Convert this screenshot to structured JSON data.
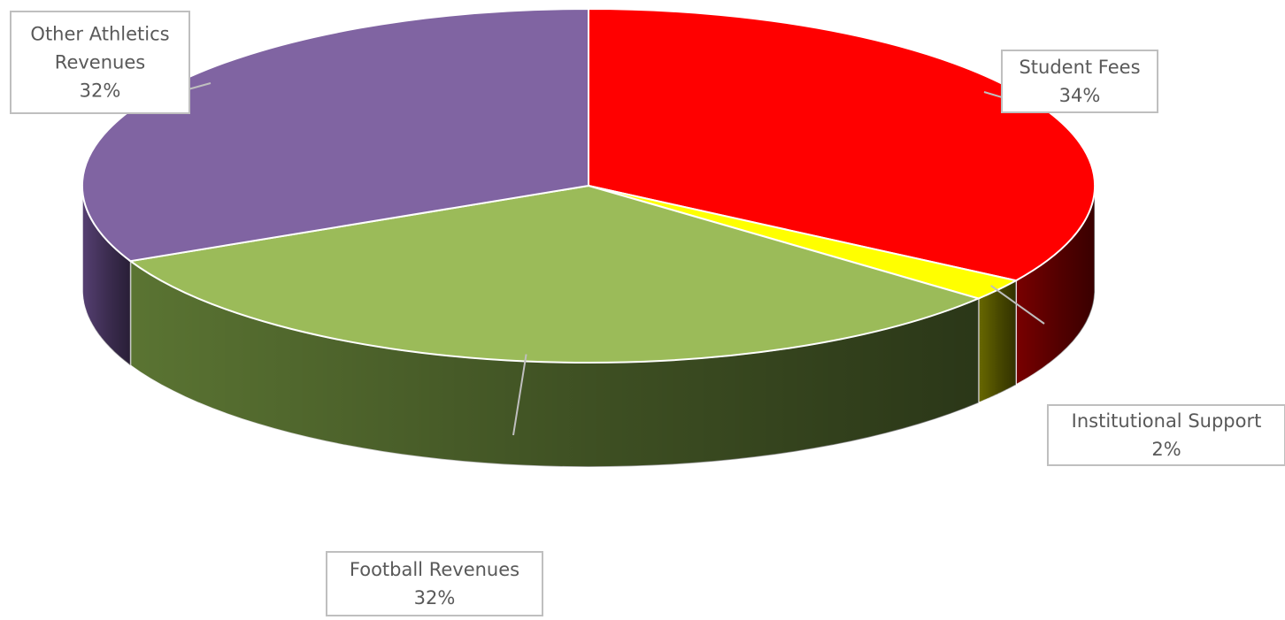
{
  "chart_data": {
    "type": "pie",
    "title": "",
    "three_d": true,
    "start_angle_deg": 0,
    "direction": "clockwise",
    "slices": [
      {
        "name": "Student Fees",
        "label": "34%",
        "value": 34,
        "color": "#ff0000",
        "side_color": "#7f0000"
      },
      {
        "name": "Institutional Support",
        "label": "2%",
        "value": 2,
        "color": "#ffff00",
        "side_color": "#6e6e00"
      },
      {
        "name": "Football Revenues",
        "label": "32%",
        "value": 32,
        "color": "#9bbb59",
        "side_color": "#5f7a35"
      },
      {
        "name": "Other Athletics Revenues",
        "label": "32%",
        "value": 32,
        "color": "#8064a2",
        "side_color": "#5a4378"
      }
    ]
  }
}
